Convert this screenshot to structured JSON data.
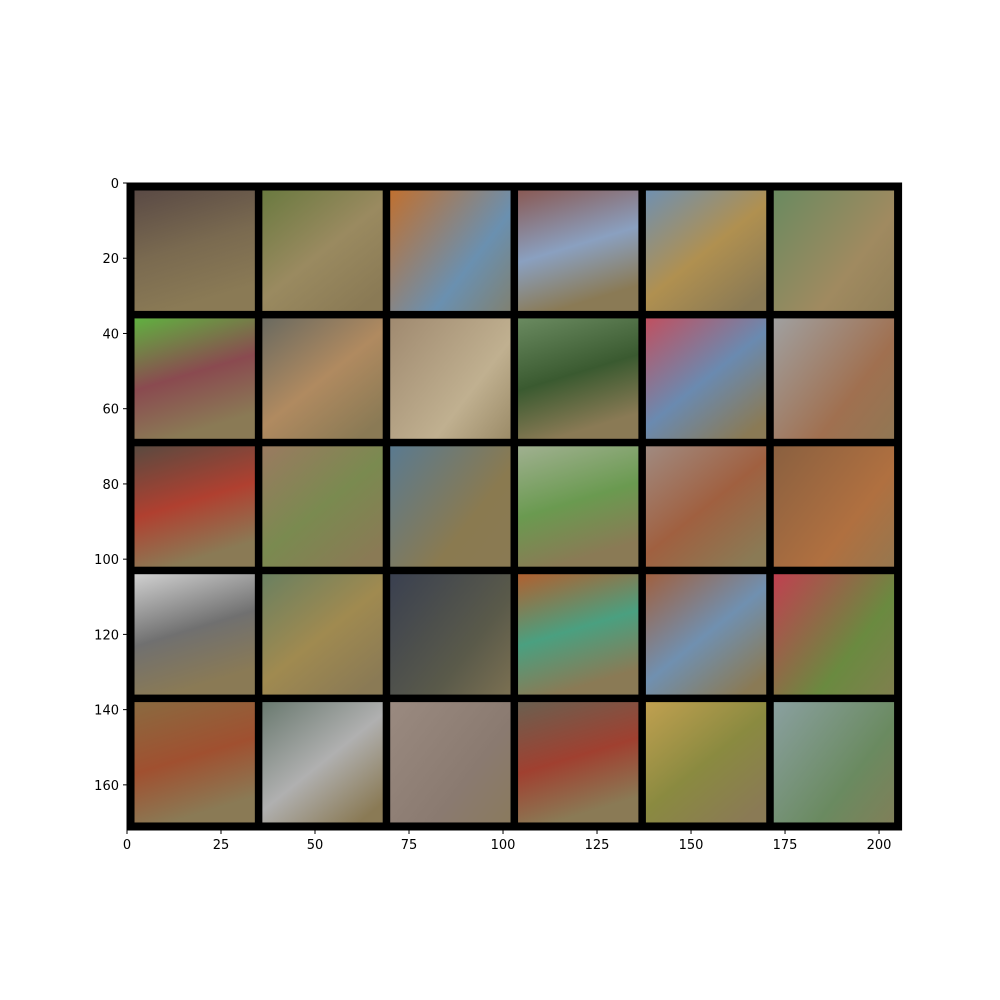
{
  "chart_data": {
    "type": "image",
    "rows": 5,
    "cols": 6,
    "tile_size": 32,
    "padding": 2,
    "xlim": [
      0,
      206
    ],
    "ylim": [
      0,
      172
    ],
    "y_inverted": true,
    "xticks": [
      0,
      25,
      50,
      75,
      100,
      125,
      150,
      175,
      200
    ],
    "yticks": [
      0,
      20,
      40,
      60,
      80,
      100,
      120,
      140,
      160
    ]
  }
}
